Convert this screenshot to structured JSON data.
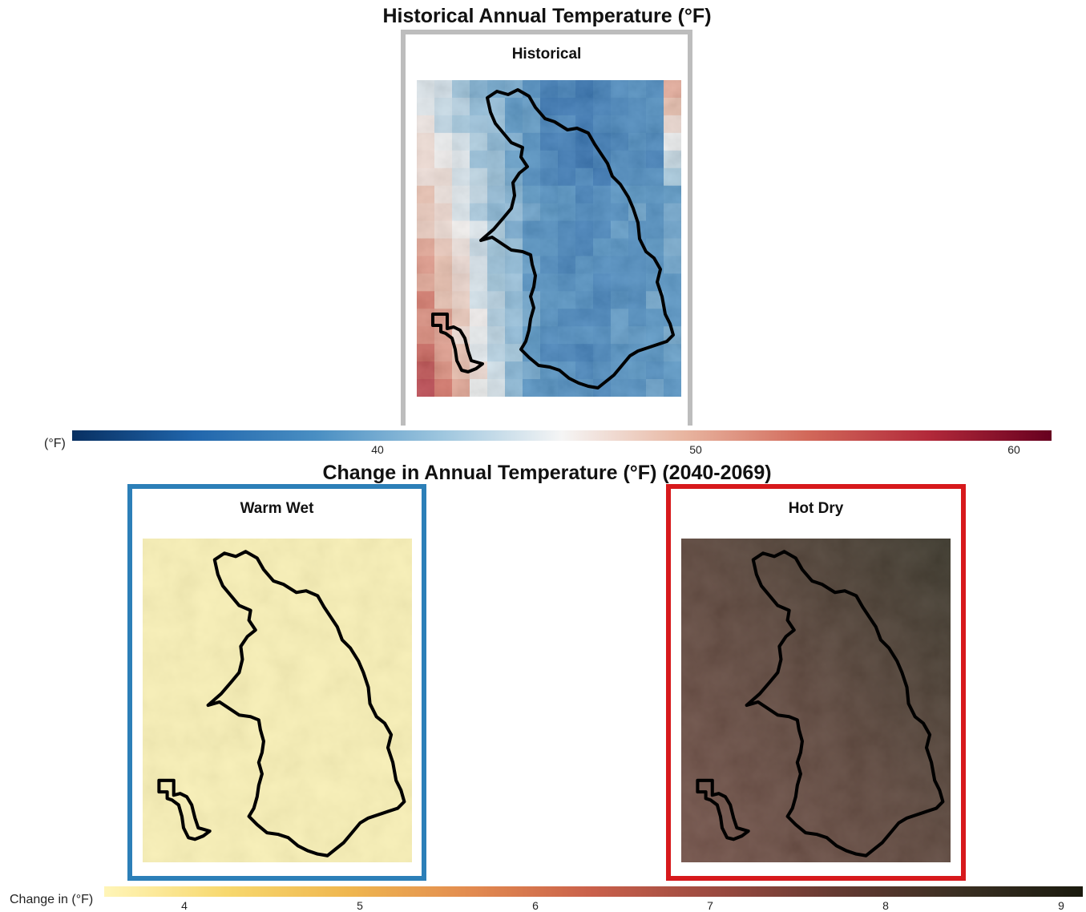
{
  "top": {
    "title": "Historical Annual Temperature (°F)",
    "panel_label": "Historical",
    "panel_border_color": "#bdbdbd",
    "colorbar": {
      "title": "(°F)",
      "ticks": [
        "40",
        "50",
        "60"
      ],
      "range": [
        32,
        61.2
      ],
      "stops": [
        "#083062",
        "#2166ac",
        "#4a8fc3",
        "#9cc5de",
        "#f5f5f5",
        "#e8b5a0",
        "#d2695a",
        "#b2293a",
        "#67001f"
      ]
    }
  },
  "bottom": {
    "title": "Change in Annual Temperature (°F) (2040-2069)",
    "panels": [
      {
        "label": "Warm Wet",
        "border_color": "#2c7fb8",
        "fill": "#faf1b4"
      },
      {
        "label": "Hot Dry",
        "border_color": "#d7191c",
        "fill": "#5b4035"
      }
    ],
    "colorbar": {
      "title": "Change in (°F)",
      "ticks": [
        "4",
        "5",
        "6",
        "7",
        "8",
        "9"
      ],
      "range": [
        3.5,
        9.12
      ],
      "stops": [
        "#fff5b8",
        "#f7d86e",
        "#efb64f",
        "#e28b50",
        "#c9604b",
        "#9b4a40",
        "#643a32",
        "#3a2f22",
        "#1a1a0e"
      ]
    }
  }
}
